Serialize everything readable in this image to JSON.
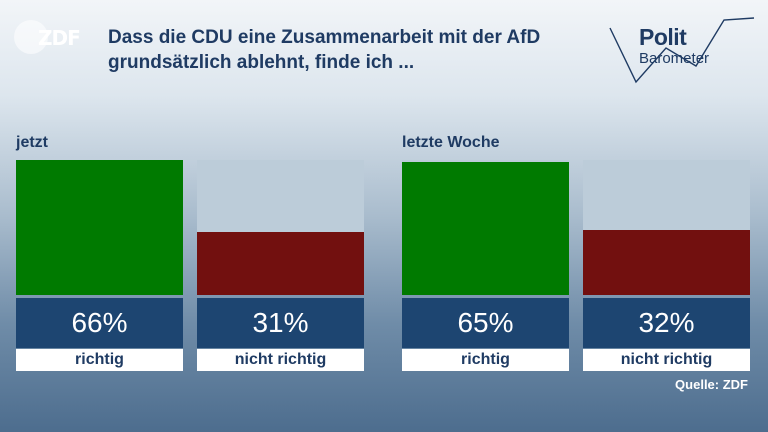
{
  "brand": {
    "logo_text": "ZDF",
    "politbarometer_line1": "Polit",
    "politbarometer_line2": "Barometer"
  },
  "title": "Dass die CDU eine Zusammenarbeit mit der AfD grundsätzlich ablehnt, finde ich ...",
  "source": "Quelle: ZDF",
  "colors": {
    "richtig": "#007a00",
    "nicht_richtig": "#72100f",
    "bar_background": "#bcccd9",
    "value_box": "#1d4571"
  },
  "chart_data": [
    {
      "type": "bar",
      "group_label": "jetzt",
      "categories": [
        "richtig",
        "nicht richtig"
      ],
      "values": [
        66,
        31
      ],
      "value_labels": [
        "66%",
        "31%"
      ],
      "ylim": [
        0,
        66
      ]
    },
    {
      "type": "bar",
      "group_label": "letzte Woche",
      "categories": [
        "richtig",
        "nicht richtig"
      ],
      "values": [
        65,
        32
      ],
      "value_labels": [
        "65%",
        "32%"
      ],
      "ylim": [
        0,
        66
      ]
    }
  ]
}
